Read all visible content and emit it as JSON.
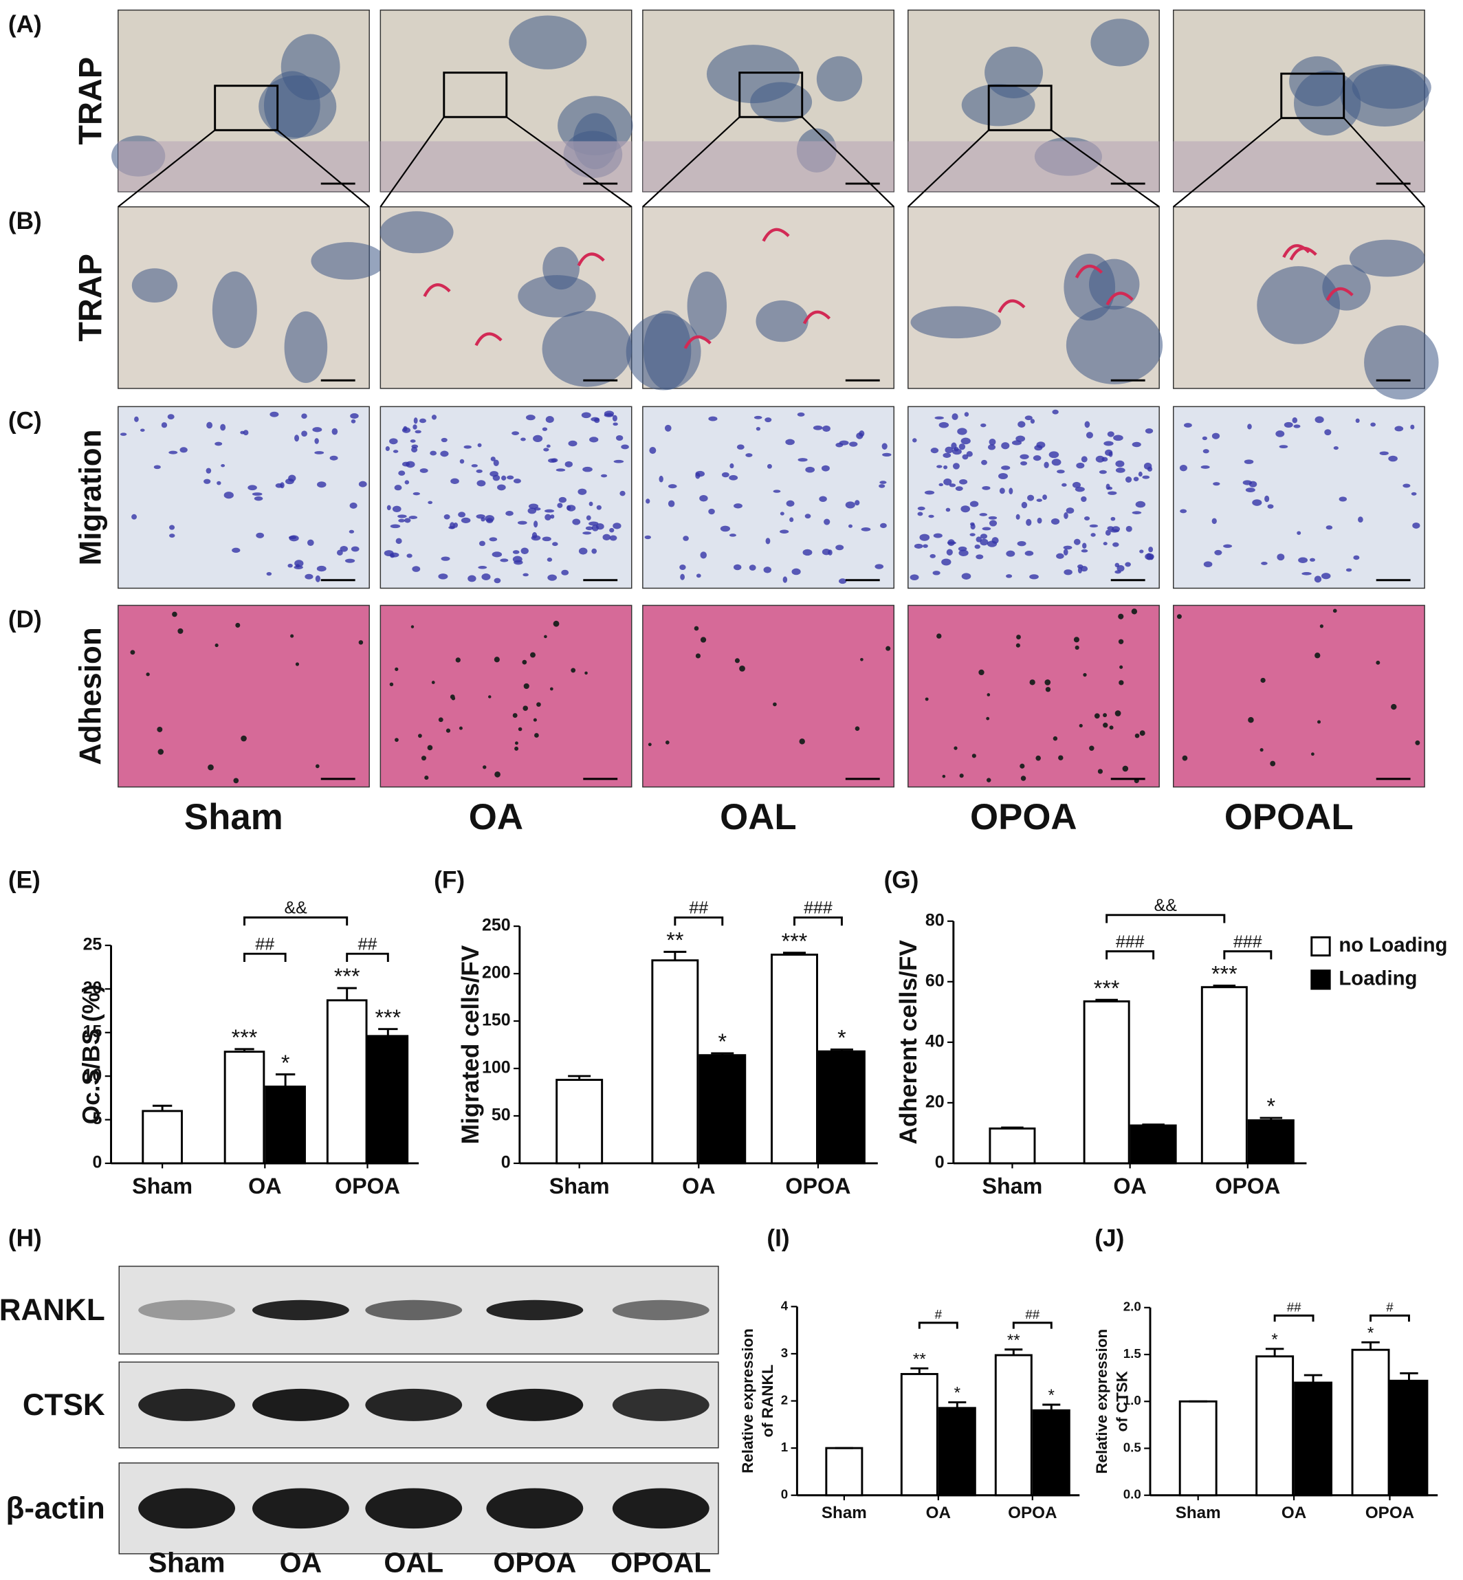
{
  "panel_labels": [
    "(A)",
    "(B)",
    "(C)",
    "(D)",
    "(E)",
    "(F)",
    "(G)",
    "(H)",
    "(I)",
    "(J)"
  ],
  "micrographs": {
    "row_labels": [
      "TRAP",
      "TRAP",
      "Migration",
      "Adhesion"
    ],
    "groups": [
      "Sham",
      "OA",
      "OAL",
      "OPOA",
      "OPOAL"
    ]
  },
  "western_blot": {
    "proteins": [
      "RANKL",
      "CTSK",
      "β-actin"
    ],
    "lanes": [
      "Sham",
      "OA",
      "OAL",
      "OPOA",
      "OPOAL"
    ]
  },
  "chart_data": [
    {
      "type": "bar",
      "ylabel": [
        "Oc.S/BS (%)"
      ],
      "categories": [
        "Sham",
        "OA",
        "OPOA"
      ],
      "ylim": [
        0,
        25
      ],
      "yticks": [
        0,
        5,
        10,
        15,
        20,
        25
      ],
      "series": [
        {
          "color": "#ffffff",
          "values": [
            6,
            12.8,
            18.7
          ],
          "errors": [
            0.6,
            0.3,
            1.4
          ],
          "annotations": [
            null,
            "***",
            "***"
          ]
        },
        {
          "color": "#000000",
          "values": [
            null,
            8.8,
            14.6
          ],
          "errors": [
            null,
            1.4,
            0.8
          ],
          "annotations": [
            null,
            "*",
            "***"
          ]
        }
      ],
      "brackets": [
        "##",
        "##",
        "&&"
      ]
    },
    {
      "type": "bar",
      "ylabel": [
        "Migrated cells/FV"
      ],
      "categories": [
        "Sham",
        "OA",
        "OPOA"
      ],
      "ylim": [
        0,
        250
      ],
      "yticks": [
        0,
        50,
        100,
        150,
        200,
        250
      ],
      "series": [
        {
          "color": "#ffffff",
          "values": [
            88,
            214,
            220
          ],
          "errors": [
            4,
            9,
            2
          ],
          "annotations": [
            null,
            "**",
            "***"
          ]
        },
        {
          "color": "#000000",
          "values": [
            null,
            114,
            118
          ],
          "errors": [
            null,
            2,
            2
          ],
          "annotations": [
            null,
            "*",
            "*"
          ]
        }
      ],
      "brackets": [
        "##",
        "###"
      ]
    },
    {
      "type": "bar",
      "ylabel": [
        "Adherent cells/FV"
      ],
      "categories": [
        "Sham",
        "OA",
        "OPOA"
      ],
      "ylim": [
        0,
        80
      ],
      "yticks": [
        0,
        20,
        40,
        60,
        80
      ],
      "legend": "right",
      "series": [
        {
          "name": "no Loading",
          "color": "#ffffff",
          "values": [
            11.5,
            53.5,
            58.2
          ],
          "errors": [
            0.3,
            0.5,
            0.5
          ],
          "annotations": [
            null,
            "***",
            "***"
          ]
        },
        {
          "name": "Loading",
          "color": "#000000",
          "values": [
            null,
            12.5,
            14.2
          ],
          "errors": [
            null,
            0.3,
            0.8
          ],
          "annotations": [
            null,
            null,
            "*"
          ]
        }
      ],
      "brackets": [
        "###",
        "###",
        "&&"
      ]
    },
    {
      "type": "bar",
      "ylabel": [
        "Relative expression",
        "of RANKL"
      ],
      "categories": [
        "Sham",
        "OA",
        "OPOA"
      ],
      "ylim": [
        0,
        4
      ],
      "yticks": [
        0,
        1,
        2,
        3,
        4
      ],
      "series": [
        {
          "color": "#ffffff",
          "values": [
            1,
            2.57,
            2.97
          ],
          "errors": [
            0,
            0.12,
            0.12
          ],
          "annotations": [
            null,
            "**",
            "**"
          ]
        },
        {
          "color": "#000000",
          "values": [
            null,
            1.85,
            1.8
          ],
          "errors": [
            null,
            0.12,
            0.12
          ],
          "annotations": [
            null,
            "*",
            "*"
          ]
        }
      ],
      "brackets": [
        "#",
        "##"
      ]
    },
    {
      "type": "bar",
      "ylabel": [
        "Relative expression",
        "of CTSK"
      ],
      "categories": [
        "Sham",
        "OA",
        "OPOA"
      ],
      "ylim": [
        0,
        2
      ],
      "yticks": [
        {
          "value": 0,
          "label": "0.0"
        },
        {
          "value": 0.5,
          "label": "0.5"
        },
        {
          "value": 1,
          "label": "1.0"
        },
        {
          "value": 1.5,
          "label": "1.5"
        },
        {
          "value": 2,
          "label": "2.0"
        }
      ],
      "series": [
        {
          "color": "#ffffff",
          "values": [
            1,
            1.48,
            1.55
          ],
          "errors": [
            0,
            0.08,
            0.08
          ],
          "annotations": [
            null,
            "*",
            "*"
          ]
        },
        {
          "color": "#000000",
          "values": [
            null,
            1.2,
            1.22
          ],
          "errors": [
            null,
            0.08,
            0.08
          ],
          "annotations": [
            null,
            null,
            null
          ]
        }
      ],
      "brackets": [
        "##",
        "#"
      ]
    }
  ]
}
